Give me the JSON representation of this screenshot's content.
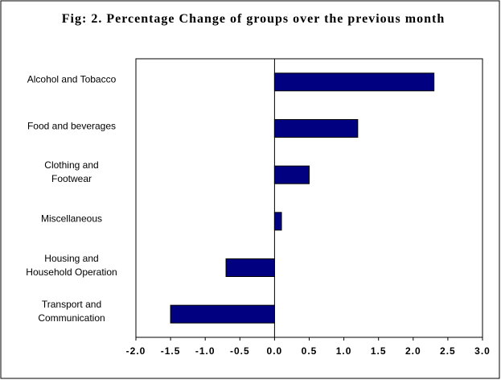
{
  "chart_data": {
    "type": "hbar",
    "title": "Fig: 2. Percentage Change of groups over the previous month",
    "categories": [
      "Alcohol and Tobacco",
      "Food and beverages",
      "Clothing and\nFootwear",
      "Miscellaneous",
      "Housing and\nHousehold Operation",
      "Transport and\nCommunication"
    ],
    "values": [
      2.3,
      1.2,
      0.5,
      0.1,
      -0.7,
      -1.5
    ],
    "color": "#000080",
    "xlim": [
      -2.0,
      3.0
    ],
    "xticks": [
      {
        "value": -2.0,
        "label": "-2.0"
      },
      {
        "value": -1.5,
        "label": "-1.5"
      },
      {
        "value": -1.0,
        "label": "-1.0"
      },
      {
        "value": -0.5,
        "label": "-0.5"
      },
      {
        "value": 0,
        "label": "0.0"
      },
      {
        "value": 0.5,
        "label": "0.5"
      },
      {
        "value": 1.0,
        "label": "1.0"
      },
      {
        "value": 1.5,
        "label": "1.5"
      },
      {
        "value": 2.0,
        "label": "2.0"
      },
      {
        "value": 2.5,
        "label": "2.5"
      },
      {
        "value": 3.0,
        "label": "3.0"
      }
    ]
  }
}
